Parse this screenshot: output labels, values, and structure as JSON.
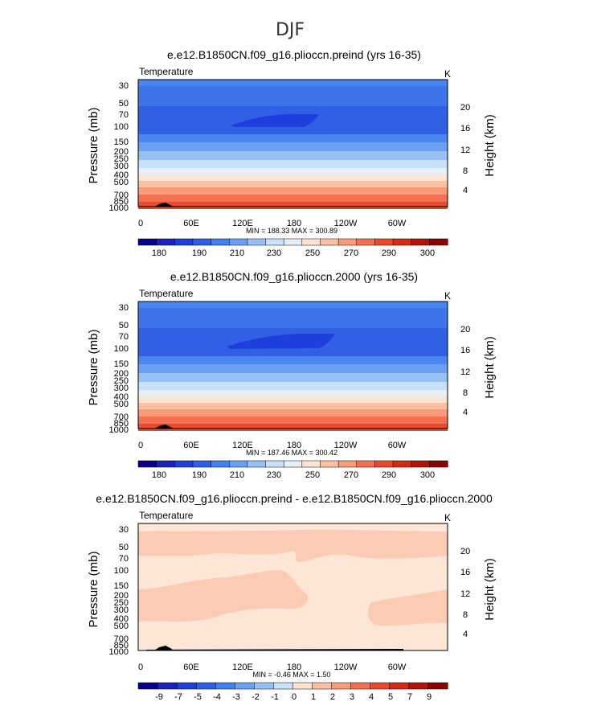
{
  "figure_title": "DJF",
  "chart_data": [
    {
      "type": "heatmap",
      "title": "e.e12.B1850CN.f09_g16.plioccn.preind (yrs 16-35)",
      "variable": "Temperature",
      "units": "K",
      "ylabel": "Pressure (mb)",
      "y2label": "Height (km)",
      "x_ticks": [
        "0",
        "60E",
        "120E",
        "180",
        "120W",
        "60W"
      ],
      "y_ticks": [
        "30",
        "50",
        "70",
        "100",
        "150",
        "200",
        "250",
        "300",
        "400",
        "500",
        "700",
        "850",
        "1000"
      ],
      "y2_ticks": [
        "20",
        "16",
        "12",
        "8",
        "4"
      ],
      "min_max_text": "MIN = 188.33   MAX = 300.89",
      "min": 188.33,
      "max": 300.89,
      "colorbar_labels": [
        "180",
        "190",
        "210",
        "230",
        "250",
        "270",
        "290",
        "300"
      ],
      "colorbar_colors": [
        "#08008c",
        "#1a21be",
        "#1e3fdb",
        "#2e5fe8",
        "#4080f0",
        "#6aa0f4",
        "#96c0f6",
        "#c8e0f8",
        "#e8eef6",
        "#fde3d2",
        "#fbc0a2",
        "#f99a78",
        "#f47050",
        "#e94a2a",
        "#d52a14",
        "#b0140a",
        "#8a0404"
      ],
      "band_colors": [
        "#4a86ee",
        "#3060e6",
        "#3d74ec",
        "#4a86ee",
        "#6aa0f4",
        "#96c0f6",
        "#c8e0f8",
        "#e8eef6",
        "#fde3d2",
        "#fbc0a2",
        "#f99a78",
        "#f47050",
        "#e94a2a",
        "#d52a14"
      ]
    },
    {
      "type": "heatmap",
      "title": "e.e12.B1850CN.f09_g16.plioccn.2000 (yrs 16-35)",
      "variable": "Temperature",
      "units": "K",
      "ylabel": "Pressure (mb)",
      "y2label": "Height (km)",
      "x_ticks": [
        "0",
        "60E",
        "120E",
        "180",
        "120W",
        "60W"
      ],
      "y_ticks": [
        "30",
        "50",
        "70",
        "100",
        "150",
        "200",
        "250",
        "300",
        "400",
        "500",
        "700",
        "850",
        "1000"
      ],
      "y2_ticks": [
        "20",
        "16",
        "12",
        "8",
        "4"
      ],
      "min_max_text": "MIN = 187.46   MAX = 300.42",
      "min": 187.46,
      "max": 300.42,
      "colorbar_labels": [
        "180",
        "190",
        "210",
        "230",
        "250",
        "270",
        "290",
        "300"
      ],
      "colorbar_colors": [
        "#08008c",
        "#1a21be",
        "#1e3fdb",
        "#2e5fe8",
        "#4080f0",
        "#6aa0f4",
        "#96c0f6",
        "#c8e0f8",
        "#e8eef6",
        "#fde3d2",
        "#fbc0a2",
        "#f99a78",
        "#f47050",
        "#e94a2a",
        "#d52a14",
        "#b0140a",
        "#8a0404"
      ],
      "band_colors": [
        "#4a86ee",
        "#3060e6",
        "#3d74ec",
        "#4a86ee",
        "#6aa0f4",
        "#96c0f6",
        "#c8e0f8",
        "#e8eef6",
        "#fde3d2",
        "#fbc0a2",
        "#f99a78",
        "#f47050",
        "#e94a2a",
        "#d52a14"
      ]
    },
    {
      "type": "heatmap",
      "title": "e.e12.B1850CN.f09_g16.plioccn.preind - e.e12.B1850CN.f09_g16.plioccn.2000",
      "variable": "Temperature",
      "units": "K",
      "ylabel": "Pressure (mb)",
      "y2label": "Height (km)",
      "x_ticks": [
        "0",
        "60E",
        "120E",
        "180",
        "120W",
        "60W"
      ],
      "y_ticks": [
        "30",
        "50",
        "70",
        "100",
        "150",
        "200",
        "250",
        "300",
        "400",
        "500",
        "700",
        "850",
        "1000"
      ],
      "y2_ticks": [
        "20",
        "16",
        "12",
        "8",
        "4"
      ],
      "min_max_text": "MIN =  -0.46   MAX =   1.50",
      "min": -0.46,
      "max": 1.5,
      "colorbar_labels": [
        "-9",
        "-7",
        "-5",
        "-4",
        "-3",
        "-2",
        "-1",
        "0",
        "1",
        "2",
        "3",
        "4",
        "5",
        "7",
        "9"
      ],
      "colorbar_colors": [
        "#08008c",
        "#1a21be",
        "#1e3fdb",
        "#2e5fe8",
        "#4080f0",
        "#6aa0f4",
        "#96c0f6",
        "#c8e0f8",
        "#fde3d2",
        "#fbc0a2",
        "#f99a78",
        "#f47050",
        "#e94a2a",
        "#d52a14",
        "#b0140a",
        "#8a0404"
      ],
      "band_colors": [
        "#fde6d6",
        "#fbcbb4"
      ]
    }
  ]
}
